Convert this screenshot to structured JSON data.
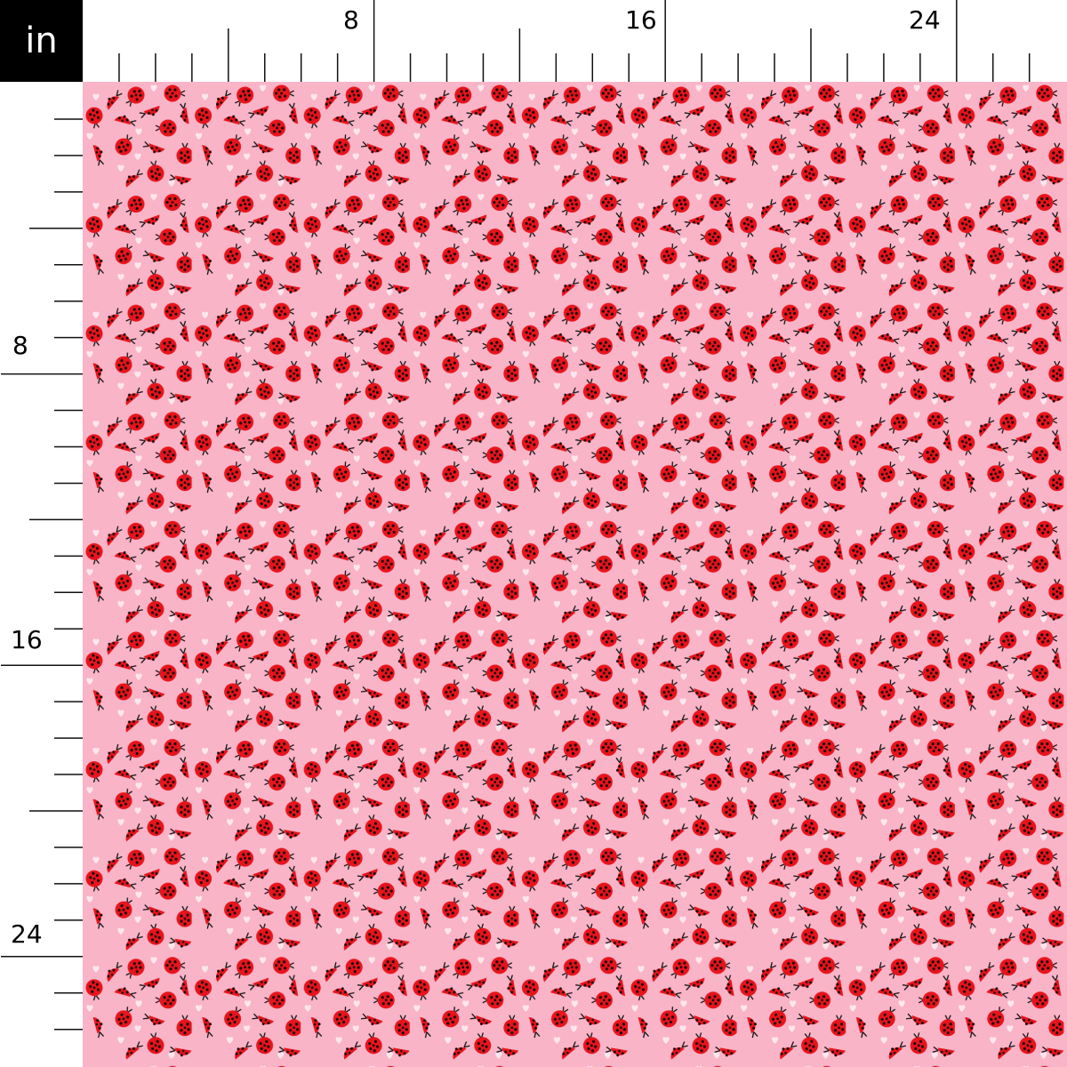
{
  "ruler": {
    "unit_label": "in",
    "top_labels": [
      "8",
      "16",
      "24"
    ],
    "left_labels": [
      "8",
      "16",
      "24"
    ],
    "max_inches_shown": 26
  },
  "fabric": {
    "motif": "ladybugs-and-hearts",
    "colors": {
      "background": "#f9b4c8",
      "ladybug": "#e8141b",
      "spots": "#1a0a0a",
      "hearts": "#fde7ee"
    },
    "repeat_inches": 3
  }
}
